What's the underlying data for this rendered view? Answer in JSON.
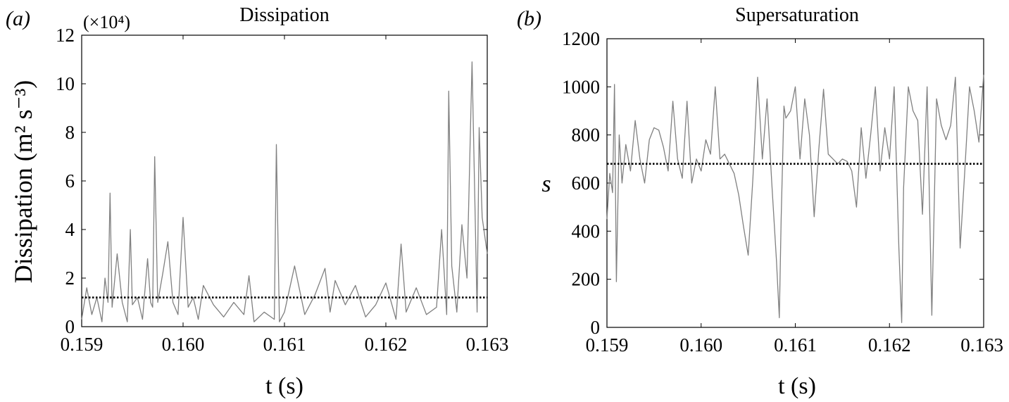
{
  "panels": [
    {
      "panel_label": "(a)",
      "title": "Dissipation",
      "multiplier": "(×10⁴)"
    },
    {
      "panel_label": "(b)",
      "title": "Supersaturation",
      "multiplier": ""
    }
  ],
  "colors": {
    "series": "#808080",
    "mean_line": "#000000",
    "axes": "#000000"
  },
  "chart_data": [
    {
      "type": "line",
      "title": "Dissipation",
      "xlabel": "t (s)",
      "ylabel": "Dissipation (m² s⁻³)",
      "y_multiplier": "×10⁴",
      "xlim": [
        0.159,
        0.163
      ],
      "ylim": [
        0,
        12
      ],
      "xticks": [
        "0.159",
        "0.160",
        "0.161",
        "0.162",
        "0.163"
      ],
      "yticks": [
        "0",
        "2",
        "4",
        "6",
        "8",
        "10",
        "12"
      ],
      "grid": false,
      "mean_line": 1.2,
      "series": [
        {
          "x": [
            0.159,
            0.15905,
            0.1591,
            0.15915,
            0.1592,
            0.15923,
            0.15926,
            0.15928,
            0.1593,
            0.15935,
            0.1594,
            0.15945,
            0.15948,
            0.1595,
            0.15955,
            0.1596,
            0.15965,
            0.15968,
            0.1597,
            0.15972,
            0.15975,
            0.1598,
            0.15985,
            0.1599,
            0.15995,
            0.16,
            0.16005,
            0.1601,
            0.16015,
            0.1602,
            0.1603,
            0.1604,
            0.1605,
            0.1606,
            0.16065,
            0.1607,
            0.1608,
            0.1609,
            0.16092,
            0.16095,
            0.161,
            0.1611,
            0.1612,
            0.1613,
            0.1614,
            0.16145,
            0.1615,
            0.1616,
            0.1617,
            0.1618,
            0.1619,
            0.162,
            0.1621,
            0.16215,
            0.1622,
            0.1623,
            0.1624,
            0.1625,
            0.16255,
            0.1626,
            0.16262,
            0.16265,
            0.1627,
            0.16275,
            0.1628,
            0.16285,
            0.1629,
            0.16292,
            0.16295,
            0.163
          ],
          "y": [
            0.3,
            1.6,
            0.5,
            1.2,
            0.2,
            2.0,
            1.0,
            5.5,
            0.8,
            3.0,
            1.0,
            0.2,
            4.0,
            0.9,
            1.2,
            0.3,
            2.8,
            1.0,
            0.8,
            7.0,
            1.0,
            2.2,
            3.5,
            1.0,
            0.5,
            4.5,
            0.8,
            1.2,
            0.3,
            1.7,
            0.9,
            0.4,
            1.0,
            0.5,
            2.1,
            0.2,
            0.6,
            0.3,
            7.5,
            0.2,
            0.6,
            2.5,
            0.5,
            1.3,
            2.4,
            0.6,
            1.9,
            0.9,
            1.7,
            0.4,
            0.9,
            1.8,
            0.3,
            3.4,
            0.6,
            1.6,
            0.5,
            0.8,
            4.0,
            0.5,
            9.7,
            2.5,
            0.6,
            4.2,
            2.0,
            10.9,
            0.6,
            8.2,
            4.5,
            3.0
          ]
        }
      ]
    },
    {
      "type": "line",
      "title": "Supersaturation",
      "xlabel": "t (s)",
      "ylabel": "s",
      "xlim": [
        0.159,
        0.163
      ],
      "ylim": [
        0,
        1200
      ],
      "xticks": [
        "0.159",
        "0.160",
        "0.161",
        "0.162",
        "0.163"
      ],
      "yticks": [
        "0",
        "200",
        "400",
        "600",
        "800",
        "1000",
        "1200"
      ],
      "grid": false,
      "mean_line": 680,
      "series": [
        {
          "x": [
            0.159,
            0.15903,
            0.15906,
            0.15908,
            0.1591,
            0.15913,
            0.15916,
            0.1592,
            0.15925,
            0.1593,
            0.15935,
            0.1594,
            0.15945,
            0.1595,
            0.15955,
            0.1596,
            0.15965,
            0.1597,
            0.15975,
            0.1598,
            0.15985,
            0.1599,
            0.15995,
            0.16,
            0.16005,
            0.1601,
            0.16015,
            0.1602,
            0.16025,
            0.1603,
            0.16035,
            0.1604,
            0.16045,
            0.1605,
            0.16055,
            0.1606,
            0.16065,
            0.1607,
            0.16075,
            0.1608,
            0.16083,
            0.16085,
            0.16088,
            0.1609,
            0.16095,
            0.161,
            0.16105,
            0.1611,
            0.16115,
            0.1612,
            0.16125,
            0.1613,
            0.16135,
            0.1614,
            0.16145,
            0.1615,
            0.16155,
            0.1616,
            0.16165,
            0.1617,
            0.16175,
            0.1618,
            0.16185,
            0.1619,
            0.16195,
            0.162,
            0.16205,
            0.1621,
            0.16213,
            0.16215,
            0.1622,
            0.16225,
            0.1623,
            0.16235,
            0.1624,
            0.16245,
            0.1625,
            0.16255,
            0.1626,
            0.16265,
            0.1627,
            0.16275,
            0.1628,
            0.16285,
            0.1629,
            0.16295,
            0.163
          ],
          "y": [
            450,
            640,
            560,
            1010,
            190,
            800,
            600,
            760,
            650,
            860,
            700,
            600,
            780,
            830,
            820,
            750,
            650,
            940,
            700,
            620,
            940,
            600,
            700,
            650,
            780,
            720,
            1000,
            700,
            720,
            680,
            640,
            550,
            420,
            300,
            620,
            1040,
            700,
            950,
            600,
            280,
            40,
            450,
            920,
            870,
            900,
            1000,
            700,
            950,
            800,
            460,
            740,
            990,
            720,
            700,
            680,
            700,
            690,
            650,
            500,
            830,
            620,
            800,
            1000,
            650,
            830,
            700,
            1000,
            330,
            20,
            580,
            1000,
            900,
            860,
            470,
            1000,
            50,
            950,
            840,
            780,
            840,
            1040,
            330,
            650,
            1000,
            900,
            770,
            1050
          ]
        }
      ]
    }
  ]
}
